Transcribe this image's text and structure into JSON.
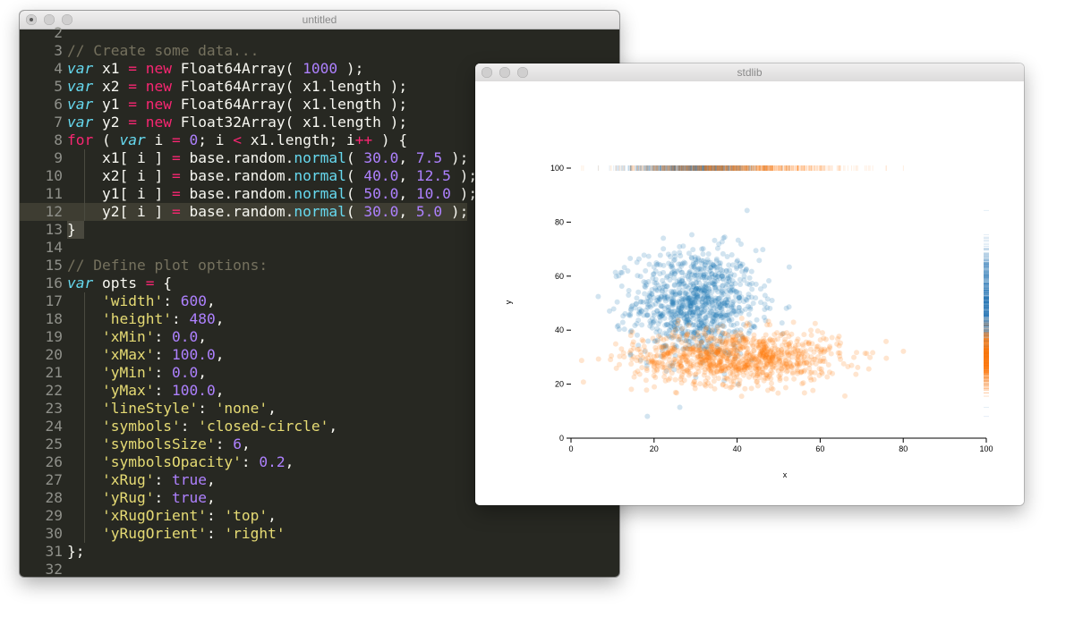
{
  "editor": {
    "title": "untitled",
    "current_line": 12,
    "lines": [
      {
        "n": "2",
        "tokens": []
      },
      {
        "n": "3",
        "tokens": [
          {
            "t": "comment",
            "v": "// Create some data..."
          }
        ]
      },
      {
        "n": "4",
        "tokens": [
          {
            "t": "storage",
            "v": "var"
          },
          {
            "t": "plain",
            "v": " x1 "
          },
          {
            "t": "keyword",
            "v": "="
          },
          {
            "t": "plain",
            "v": " "
          },
          {
            "t": "keyword",
            "v": "new"
          },
          {
            "t": "plain",
            "v": " Float64Array( "
          },
          {
            "t": "number",
            "v": "1000"
          },
          {
            "t": "plain",
            "v": " );"
          }
        ]
      },
      {
        "n": "5",
        "tokens": [
          {
            "t": "storage",
            "v": "var"
          },
          {
            "t": "plain",
            "v": " x2 "
          },
          {
            "t": "keyword",
            "v": "="
          },
          {
            "t": "plain",
            "v": " "
          },
          {
            "t": "keyword",
            "v": "new"
          },
          {
            "t": "plain",
            "v": " Float64Array( x1.length );"
          }
        ]
      },
      {
        "n": "6",
        "tokens": [
          {
            "t": "storage",
            "v": "var"
          },
          {
            "t": "plain",
            "v": " y1 "
          },
          {
            "t": "keyword",
            "v": "="
          },
          {
            "t": "plain",
            "v": " "
          },
          {
            "t": "keyword",
            "v": "new"
          },
          {
            "t": "plain",
            "v": " Float64Array( x1.length );"
          }
        ]
      },
      {
        "n": "7",
        "tokens": [
          {
            "t": "storage",
            "v": "var"
          },
          {
            "t": "plain",
            "v": " y2 "
          },
          {
            "t": "keyword",
            "v": "="
          },
          {
            "t": "plain",
            "v": " "
          },
          {
            "t": "keyword",
            "v": "new"
          },
          {
            "t": "plain",
            "v": " Float32Array( x1.length );"
          }
        ]
      },
      {
        "n": "8",
        "tokens": [
          {
            "t": "keyword",
            "v": "for"
          },
          {
            "t": "plain",
            "v": " ( "
          },
          {
            "t": "storage",
            "v": "var"
          },
          {
            "t": "plain",
            "v": " i "
          },
          {
            "t": "keyword",
            "v": "="
          },
          {
            "t": "plain",
            "v": " "
          },
          {
            "t": "number",
            "v": "0"
          },
          {
            "t": "plain",
            "v": "; i "
          },
          {
            "t": "keyword",
            "v": "<"
          },
          {
            "t": "plain",
            "v": " x1.length; i"
          },
          {
            "t": "keyword",
            "v": "++"
          },
          {
            "t": "plain",
            "v": " ) {"
          }
        ]
      },
      {
        "n": "9",
        "tokens": [
          {
            "t": "plain",
            "v": "    x1[ i ] "
          },
          {
            "t": "keyword",
            "v": "="
          },
          {
            "t": "plain",
            "v": " base.random."
          },
          {
            "t": "func",
            "v": "normal"
          },
          {
            "t": "plain",
            "v": "( "
          },
          {
            "t": "number",
            "v": "30.0"
          },
          {
            "t": "plain",
            "v": ", "
          },
          {
            "t": "number",
            "v": "7.5"
          },
          {
            "t": "plain",
            "v": " );"
          }
        ]
      },
      {
        "n": "10",
        "tokens": [
          {
            "t": "plain",
            "v": "    x2[ i ] "
          },
          {
            "t": "keyword",
            "v": "="
          },
          {
            "t": "plain",
            "v": " base.random."
          },
          {
            "t": "func",
            "v": "normal"
          },
          {
            "t": "plain",
            "v": "( "
          },
          {
            "t": "number",
            "v": "40.0"
          },
          {
            "t": "plain",
            "v": ", "
          },
          {
            "t": "number",
            "v": "12.5"
          },
          {
            "t": "plain",
            "v": " );"
          }
        ]
      },
      {
        "n": "11",
        "tokens": [
          {
            "t": "plain",
            "v": "    y1[ i ] "
          },
          {
            "t": "keyword",
            "v": "="
          },
          {
            "t": "plain",
            "v": " base.random."
          },
          {
            "t": "func",
            "v": "normal"
          },
          {
            "t": "plain",
            "v": "( "
          },
          {
            "t": "number",
            "v": "50.0"
          },
          {
            "t": "plain",
            "v": ", "
          },
          {
            "t": "number",
            "v": "10.0"
          },
          {
            "t": "plain",
            "v": " );"
          }
        ]
      },
      {
        "n": "12",
        "tokens": [
          {
            "t": "plain",
            "v": "    y2[ i ] "
          },
          {
            "t": "keyword",
            "v": "="
          },
          {
            "t": "plain",
            "v": " base.random."
          },
          {
            "t": "func",
            "v": "normal"
          },
          {
            "t": "plain",
            "v": "( "
          },
          {
            "t": "number",
            "v": "30.0"
          },
          {
            "t": "plain",
            "v": ", "
          },
          {
            "t": "number",
            "v": "5.0"
          },
          {
            "t": "plain",
            "v": " );"
          }
        ]
      },
      {
        "n": "13",
        "tokens": [
          {
            "t": "plain",
            "v": "}"
          }
        ]
      },
      {
        "n": "14",
        "tokens": []
      },
      {
        "n": "15",
        "tokens": [
          {
            "t": "comment",
            "v": "// Define plot options:"
          }
        ]
      },
      {
        "n": "16",
        "tokens": [
          {
            "t": "storage",
            "v": "var"
          },
          {
            "t": "plain",
            "v": " opts "
          },
          {
            "t": "keyword",
            "v": "="
          },
          {
            "t": "plain",
            "v": " {"
          }
        ]
      },
      {
        "n": "17",
        "tokens": [
          {
            "t": "plain",
            "v": "    "
          },
          {
            "t": "string",
            "v": "'width'"
          },
          {
            "t": "plain",
            "v": ": "
          },
          {
            "t": "number",
            "v": "600"
          },
          {
            "t": "plain",
            "v": ","
          }
        ]
      },
      {
        "n": "18",
        "tokens": [
          {
            "t": "plain",
            "v": "    "
          },
          {
            "t": "string",
            "v": "'height'"
          },
          {
            "t": "plain",
            "v": ": "
          },
          {
            "t": "number",
            "v": "480"
          },
          {
            "t": "plain",
            "v": ","
          }
        ]
      },
      {
        "n": "19",
        "tokens": [
          {
            "t": "plain",
            "v": "    "
          },
          {
            "t": "string",
            "v": "'xMin'"
          },
          {
            "t": "plain",
            "v": ": "
          },
          {
            "t": "number",
            "v": "0.0"
          },
          {
            "t": "plain",
            "v": ","
          }
        ]
      },
      {
        "n": "20",
        "tokens": [
          {
            "t": "plain",
            "v": "    "
          },
          {
            "t": "string",
            "v": "'xMax'"
          },
          {
            "t": "plain",
            "v": ": "
          },
          {
            "t": "number",
            "v": "100.0"
          },
          {
            "t": "plain",
            "v": ","
          }
        ]
      },
      {
        "n": "21",
        "tokens": [
          {
            "t": "plain",
            "v": "    "
          },
          {
            "t": "string",
            "v": "'yMin'"
          },
          {
            "t": "plain",
            "v": ": "
          },
          {
            "t": "number",
            "v": "0.0"
          },
          {
            "t": "plain",
            "v": ","
          }
        ]
      },
      {
        "n": "22",
        "tokens": [
          {
            "t": "plain",
            "v": "    "
          },
          {
            "t": "string",
            "v": "'yMax'"
          },
          {
            "t": "plain",
            "v": ": "
          },
          {
            "t": "number",
            "v": "100.0"
          },
          {
            "t": "plain",
            "v": ","
          }
        ]
      },
      {
        "n": "23",
        "tokens": [
          {
            "t": "plain",
            "v": "    "
          },
          {
            "t": "string",
            "v": "'lineStyle'"
          },
          {
            "t": "plain",
            "v": ": "
          },
          {
            "t": "string",
            "v": "'none'"
          },
          {
            "t": "plain",
            "v": ","
          }
        ]
      },
      {
        "n": "24",
        "tokens": [
          {
            "t": "plain",
            "v": "    "
          },
          {
            "t": "string",
            "v": "'symbols'"
          },
          {
            "t": "plain",
            "v": ": "
          },
          {
            "t": "string",
            "v": "'closed-circle'"
          },
          {
            "t": "plain",
            "v": ","
          }
        ]
      },
      {
        "n": "25",
        "tokens": [
          {
            "t": "plain",
            "v": "    "
          },
          {
            "t": "string",
            "v": "'symbolsSize'"
          },
          {
            "t": "plain",
            "v": ": "
          },
          {
            "t": "number",
            "v": "6"
          },
          {
            "t": "plain",
            "v": ","
          }
        ]
      },
      {
        "n": "26",
        "tokens": [
          {
            "t": "plain",
            "v": "    "
          },
          {
            "t": "string",
            "v": "'symbolsOpacity'"
          },
          {
            "t": "plain",
            "v": ": "
          },
          {
            "t": "number",
            "v": "0.2"
          },
          {
            "t": "plain",
            "v": ","
          }
        ]
      },
      {
        "n": "27",
        "tokens": [
          {
            "t": "plain",
            "v": "    "
          },
          {
            "t": "string",
            "v": "'xRug'"
          },
          {
            "t": "plain",
            "v": ": "
          },
          {
            "t": "const",
            "v": "true"
          },
          {
            "t": "plain",
            "v": ","
          }
        ]
      },
      {
        "n": "28",
        "tokens": [
          {
            "t": "plain",
            "v": "    "
          },
          {
            "t": "string",
            "v": "'yRug'"
          },
          {
            "t": "plain",
            "v": ": "
          },
          {
            "t": "const",
            "v": "true"
          },
          {
            "t": "plain",
            "v": ","
          }
        ]
      },
      {
        "n": "29",
        "tokens": [
          {
            "t": "plain",
            "v": "    "
          },
          {
            "t": "string",
            "v": "'xRugOrient'"
          },
          {
            "t": "plain",
            "v": ": "
          },
          {
            "t": "string",
            "v": "'top'"
          },
          {
            "t": "plain",
            "v": ","
          }
        ]
      },
      {
        "n": "30",
        "tokens": [
          {
            "t": "plain",
            "v": "    "
          },
          {
            "t": "string",
            "v": "'yRugOrient'"
          },
          {
            "t": "plain",
            "v": ": "
          },
          {
            "t": "string",
            "v": "'right'"
          }
        ]
      },
      {
        "n": "31",
        "tokens": [
          {
            "t": "plain",
            "v": "};"
          }
        ]
      },
      {
        "n": "32",
        "tokens": []
      }
    ]
  },
  "plot_window": {
    "title": "stdlib"
  },
  "chart_data": {
    "type": "scatter",
    "xlabel": "x",
    "ylabel": "y",
    "xlim": [
      0,
      100
    ],
    "ylim": [
      0,
      100
    ],
    "xticks": [
      "0",
      "20",
      "40",
      "60",
      "80",
      "100"
    ],
    "yticks": [
      "0",
      "20",
      "40",
      "60",
      "80",
      "100"
    ],
    "symbols": "closed-circle",
    "symbols_opacity": 0.2,
    "x_rug": "top",
    "y_rug": "right",
    "series": [
      {
        "color": "#1f77b4",
        "x_mean": 30.0,
        "x_sd": 7.5,
        "y_mean": 50.0,
        "y_sd": 10.0,
        "count": 1000
      },
      {
        "color": "#ff7f0e",
        "x_mean": 40.0,
        "x_sd": 12.5,
        "y_mean": 30.0,
        "y_sd": 5.0,
        "count": 1000
      }
    ]
  }
}
